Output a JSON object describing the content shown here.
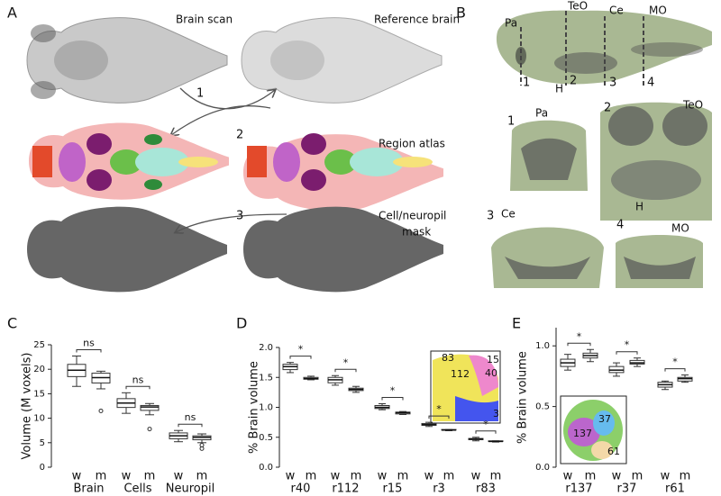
{
  "figure": {
    "panel_a": {
      "letter": "A",
      "brain_scan": "Brain scan",
      "reference_brain": "Reference brain",
      "region_atlas": "Region atlas",
      "mask_line1": "Cell/neuropil",
      "mask_line2": "mask",
      "step1": "1",
      "step2": "2",
      "step3": "3"
    },
    "panel_b": {
      "letter": "B",
      "side_labels": [
        "Pa",
        "TeO",
        "Ce",
        "MO"
      ],
      "section_numbers": [
        "1",
        "2",
        "3",
        "4"
      ],
      "h_label": "H",
      "sections": [
        {
          "number": "1",
          "label": "Pa"
        },
        {
          "number": "2",
          "label": "TeO",
          "marker": "H"
        },
        {
          "number": "3",
          "label": "Ce"
        },
        {
          "number": "4",
          "label": "MO"
        }
      ]
    }
  },
  "chart_data": [
    {
      "type": "box",
      "panel": "C",
      "ylabel": "Volume (M voxels)",
      "ylim": [
        0,
        25
      ],
      "yticks": [
        0,
        5,
        10,
        15,
        20,
        25
      ],
      "groups": [
        {
          "name": "Brain",
          "significance": "ns",
          "boxes": [
            {
              "name": "w",
              "min": 16.5,
              "q1": 18.5,
              "median": 19.8,
              "q3": 21,
              "max": 22.7
            },
            {
              "name": "m",
              "min": 16,
              "q1": 17.2,
              "median": 18.3,
              "q3": 19.2,
              "max": 19.6,
              "outliers": [
                11.5
              ]
            }
          ]
        },
        {
          "name": "Cells",
          "significance": "ns",
          "boxes": [
            {
              "name": "w",
              "min": 11,
              "q1": 12.2,
              "median": 13.1,
              "q3": 14,
              "max": 15.2
            },
            {
              "name": "m",
              "min": 10.7,
              "q1": 11.6,
              "median": 12.3,
              "q3": 12.6,
              "max": 13,
              "outliers": [
                7.8
              ]
            }
          ]
        },
        {
          "name": "Neuropil",
          "significance": "ns",
          "boxes": [
            {
              "name": "w",
              "min": 5.2,
              "q1": 5.8,
              "median": 6.4,
              "q3": 7,
              "max": 7.5
            },
            {
              "name": "m",
              "min": 5,
              "q1": 5.6,
              "median": 6.1,
              "q3": 6.4,
              "max": 6.8,
              "outliers": [
                4.5,
                3.8
              ]
            }
          ]
        }
      ]
    },
    {
      "type": "box",
      "panel": "D",
      "ylabel": "% Brain volume",
      "ylim": [
        0,
        2
      ],
      "yticks": [
        {
          "value": 0,
          "label": "0.0"
        },
        0.5,
        {
          "value": 1,
          "label": "1.0"
        },
        1.5,
        {
          "value": 2,
          "label": "2.0"
        }
      ],
      "inset_labels": [
        "83",
        "15",
        "112",
        "40",
        "3"
      ],
      "groups": [
        {
          "name": "r40",
          "significance": "*",
          "boxes": [
            {
              "name": "w",
              "min": 1.58,
              "q1": 1.63,
              "median": 1.68,
              "q3": 1.72,
              "max": 1.75
            },
            {
              "name": "m",
              "min": 1.46,
              "q1": 1.47,
              "median": 1.48,
              "q3": 1.5,
              "max": 1.52
            }
          ]
        },
        {
          "name": "r112",
          "significance": "*",
          "boxes": [
            {
              "name": "w",
              "min": 1.37,
              "q1": 1.41,
              "median": 1.46,
              "q3": 1.5,
              "max": 1.53
            },
            {
              "name": "m",
              "min": 1.25,
              "q1": 1.28,
              "median": 1.3,
              "q3": 1.32,
              "max": 1.35
            }
          ]
        },
        {
          "name": "r15",
          "significance": "*",
          "boxes": [
            {
              "name": "w",
              "min": 0.96,
              "q1": 0.98,
              "median": 1.0,
              "q3": 1.03,
              "max": 1.06
            },
            {
              "name": "m",
              "min": 0.88,
              "q1": 0.89,
              "median": 0.91,
              "q3": 0.92,
              "max": 0.93
            }
          ]
        },
        {
          "name": "r3",
          "significance": "*",
          "boxes": [
            {
              "name": "w",
              "min": 0.68,
              "q1": 0.7,
              "median": 0.71,
              "q3": 0.73,
              "max": 0.75
            },
            {
              "name": "m",
              "min": 0.61,
              "q1": 0.62,
              "median": 0.62,
              "q3": 0.63,
              "max": 0.63
            }
          ]
        },
        {
          "name": "r83",
          "significance": "*",
          "boxes": [
            {
              "name": "w",
              "min": 0.44,
              "q1": 0.46,
              "median": 0.47,
              "q3": 0.48,
              "max": 0.5
            },
            {
              "name": "m",
              "min": 0.42,
              "q1": 0.43,
              "median": 0.43,
              "q3": 0.44,
              "max": 0.44
            }
          ]
        }
      ]
    },
    {
      "type": "box",
      "panel": "E",
      "ylabel": "% Brain volume",
      "ylim": [
        0,
        1.15
      ],
      "yticks": [
        {
          "value": 0,
          "label": "0.0"
        },
        0.5,
        {
          "value": 1,
          "label": "1.0"
        }
      ],
      "inset_labels": [
        "37",
        "137",
        "61"
      ],
      "groups": [
        {
          "name": "r137",
          "significance": "*",
          "boxes": [
            {
              "name": "w",
              "min": 0.8,
              "q1": 0.83,
              "median": 0.86,
              "q3": 0.89,
              "max": 0.93
            },
            {
              "name": "m",
              "min": 0.87,
              "q1": 0.9,
              "median": 0.92,
              "q3": 0.94,
              "max": 0.97
            }
          ]
        },
        {
          "name": "r37",
          "significance": "*",
          "boxes": [
            {
              "name": "w",
              "min": 0.75,
              "q1": 0.78,
              "median": 0.8,
              "q3": 0.83,
              "max": 0.86
            },
            {
              "name": "m",
              "min": 0.83,
              "q1": 0.85,
              "median": 0.86,
              "q3": 0.88,
              "max": 0.9
            }
          ]
        },
        {
          "name": "r61",
          "significance": "*",
          "boxes": [
            {
              "name": "w",
              "min": 0.64,
              "q1": 0.66,
              "median": 0.68,
              "q3": 0.7,
              "max": 0.71
            },
            {
              "name": "m",
              "min": 0.7,
              "q1": 0.71,
              "median": 0.73,
              "q3": 0.74,
              "max": 0.76
            }
          ]
        }
      ]
    }
  ]
}
